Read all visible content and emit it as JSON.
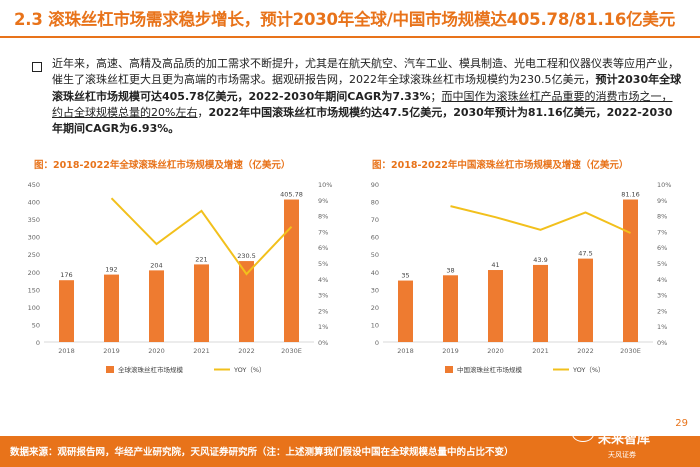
{
  "header": {
    "title": "2.3 滚珠丝杠市场需求稳步增长，预计2030年全球/中国市场规模达405.78/81.16亿美元"
  },
  "body": {
    "p1": "近年来，高速、高精及高品质的加工需求不断提升，尤其是在航天航空、汽车工业、模具制造、光电工程和仪器仪表等应用产业，催生了滚珠丝杠更大且更为高端的市场需求。据观研报告网，2022年全球滚珠丝杠市场规模约为230.5亿美元，",
    "p2": "预计2030年全球滚珠丝杠市场规模可达405.78亿美元，2022-2030年期间CAGR为7.33%",
    "p3": "；",
    "p4": "而中国作为滚珠丝杠产品重要的消费市场之一，约占全球规模总量的20%左右",
    "p5": "，",
    "p6": "2022年中国滚珠丝杠市场规模约达47.5亿美元，2030年预计为81.16亿美元，2022-2030年期间CAGR为6.93%。"
  },
  "chart_data": [
    {
      "type": "bar",
      "title": "图：2018-2022年全球滚珠丝杠市场规模及增速（亿美元）",
      "categories": [
        "2018",
        "2019",
        "2020",
        "2021",
        "2022",
        "2030E"
      ],
      "series": [
        {
          "name": "全球滚珠丝杠市场规模",
          "type": "bar",
          "values": [
            176,
            192,
            204,
            221,
            230.5,
            405.78
          ],
          "labels": [
            "176",
            "192",
            "204",
            "221",
            "230.5",
            "405.78"
          ]
        },
        {
          "name": "YOY（%）",
          "type": "line",
          "axis": "right",
          "values": [
            null,
            9.1,
            6.2,
            8.3,
            4.3,
            7.3
          ]
        }
      ],
      "ylim": [
        0,
        450
      ],
      "yticks": [
        "0",
        "50",
        "100",
        "150",
        "200",
        "250",
        "300",
        "350",
        "400",
        "450"
      ],
      "ylim_right": [
        0,
        10
      ],
      "yticks_right": [
        "0%",
        "1%",
        "2%",
        "3%",
        "4%",
        "5%",
        "6%",
        "7%",
        "8%",
        "9%",
        "10%"
      ],
      "colors": {
        "bar": "#EE7B30",
        "line": "#F2C01C"
      }
    },
    {
      "type": "bar",
      "title": "图：2018-2022年中国滚珠丝杠市场规模及增速（亿美元）",
      "categories": [
        "2018",
        "2019",
        "2020",
        "2021",
        "2022",
        "2030E"
      ],
      "series": [
        {
          "name": "中国滚珠丝杠市场规模",
          "type": "bar",
          "values": [
            35,
            38,
            41,
            43.9,
            47.5,
            81.16
          ],
          "labels": [
            "35",
            "38",
            "41",
            "43.9",
            "47.5",
            "81.16"
          ]
        },
        {
          "name": "YOY（%）",
          "type": "line",
          "axis": "right",
          "values": [
            null,
            8.6,
            7.9,
            7.1,
            8.2,
            6.9
          ]
        }
      ],
      "ylim": [
        0,
        90
      ],
      "yticks": [
        "0",
        "10",
        "20",
        "30",
        "40",
        "50",
        "60",
        "70",
        "80",
        "90"
      ],
      "ylim_right": [
        0,
        10
      ],
      "yticks_right": [
        "0%",
        "1%",
        "2%",
        "3%",
        "4%",
        "5%",
        "6%",
        "7%",
        "8%",
        "9%",
        "10%"
      ],
      "colors": {
        "bar": "#EE7B30",
        "line": "#F2C01C"
      }
    }
  ],
  "footer": {
    "source": "数据来源：观研报告网，华经产业研究院，天风证券研究所（注：上述测算我们假设中国在全球规模总量中的占比不变）",
    "page": "29",
    "watermark": "未来智库",
    "logo": "天风证券"
  }
}
